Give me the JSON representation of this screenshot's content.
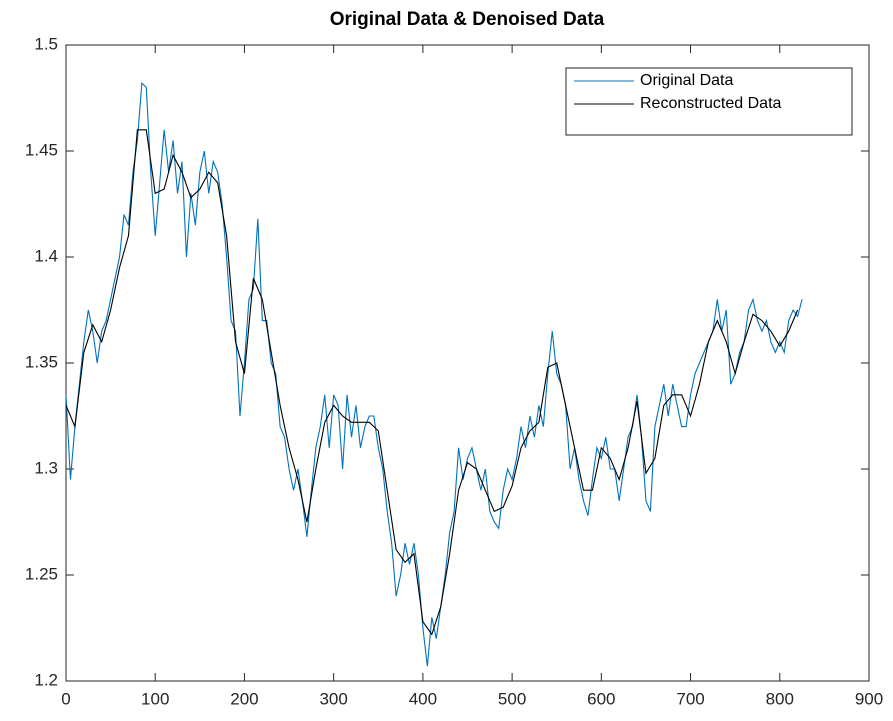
{
  "chart_data": {
    "type": "line",
    "title": "Original Data & Denoised Data",
    "xlim": [
      0,
      900
    ],
    "xticks": [
      0,
      100,
      200,
      300,
      400,
      500,
      600,
      700,
      800,
      900
    ],
    "ylim": [
      1.2,
      1.5
    ],
    "yticks": [
      1.2,
      1.25,
      1.3,
      1.35,
      1.4,
      1.45,
      1.5
    ],
    "legend": "northeast",
    "grid": false,
    "series": [
      {
        "name": "Original Data",
        "color": "#0072BD",
        "x": [
          0,
          5,
          10,
          15,
          20,
          25,
          30,
          35,
          40,
          45,
          50,
          55,
          60,
          65,
          70,
          75,
          80,
          85,
          90,
          95,
          100,
          105,
          110,
          115,
          120,
          125,
          130,
          135,
          140,
          145,
          150,
          155,
          160,
          165,
          170,
          175,
          180,
          185,
          190,
          195,
          200,
          205,
          210,
          215,
          220,
          225,
          230,
          235,
          240,
          245,
          250,
          255,
          260,
          265,
          270,
          275,
          280,
          285,
          290,
          295,
          300,
          305,
          310,
          315,
          320,
          325,
          330,
          335,
          340,
          345,
          350,
          355,
          360,
          365,
          370,
          375,
          380,
          385,
          390,
          395,
          400,
          405,
          410,
          415,
          420,
          425,
          430,
          435,
          440,
          445,
          450,
          455,
          460,
          465,
          470,
          475,
          480,
          485,
          490,
          495,
          500,
          505,
          510,
          515,
          520,
          525,
          530,
          535,
          540,
          545,
          550,
          555,
          560,
          565,
          570,
          575,
          580,
          585,
          590,
          595,
          600,
          605,
          610,
          615,
          620,
          625,
          630,
          635,
          640,
          645,
          650,
          655,
          660,
          665,
          670,
          675,
          680,
          685,
          690,
          695,
          700,
          705,
          710,
          715,
          720,
          725,
          730,
          735,
          740,
          745,
          750,
          755,
          760,
          765,
          770,
          775,
          780,
          785,
          790,
          795,
          800,
          805,
          810,
          815,
          820,
          825
        ],
        "values": [
          1.335,
          1.295,
          1.32,
          1.34,
          1.36,
          1.375,
          1.365,
          1.35,
          1.365,
          1.37,
          1.38,
          1.39,
          1.4,
          1.42,
          1.415,
          1.44,
          1.455,
          1.482,
          1.48,
          1.44,
          1.41,
          1.435,
          1.46,
          1.44,
          1.455,
          1.43,
          1.445,
          1.4,
          1.43,
          1.415,
          1.44,
          1.45,
          1.43,
          1.445,
          1.44,
          1.425,
          1.4,
          1.37,
          1.365,
          1.325,
          1.35,
          1.38,
          1.385,
          1.418,
          1.37,
          1.37,
          1.35,
          1.345,
          1.32,
          1.315,
          1.3,
          1.29,
          1.3,
          1.285,
          1.268,
          1.29,
          1.31,
          1.32,
          1.335,
          1.31,
          1.335,
          1.33,
          1.3,
          1.335,
          1.315,
          1.33,
          1.31,
          1.32,
          1.325,
          1.325,
          1.31,
          1.3,
          1.28,
          1.265,
          1.24,
          1.25,
          1.265,
          1.255,
          1.265,
          1.25,
          1.225,
          1.207,
          1.23,
          1.22,
          1.235,
          1.25,
          1.27,
          1.28,
          1.31,
          1.295,
          1.305,
          1.31,
          1.3,
          1.29,
          1.3,
          1.28,
          1.275,
          1.272,
          1.29,
          1.3,
          1.295,
          1.305,
          1.32,
          1.31,
          1.325,
          1.315,
          1.33,
          1.32,
          1.345,
          1.365,
          1.345,
          1.34,
          1.33,
          1.3,
          1.31,
          1.295,
          1.285,
          1.278,
          1.295,
          1.31,
          1.305,
          1.315,
          1.3,
          1.3,
          1.285,
          1.3,
          1.315,
          1.32,
          1.335,
          1.315,
          1.285,
          1.28,
          1.32,
          1.33,
          1.34,
          1.325,
          1.34,
          1.33,
          1.32,
          1.32,
          1.335,
          1.345,
          1.35,
          1.355,
          1.36,
          1.365,
          1.38,
          1.365,
          1.375,
          1.34,
          1.345,
          1.355,
          1.36,
          1.375,
          1.38,
          1.37,
          1.365,
          1.37,
          1.36,
          1.355,
          1.36,
          1.355,
          1.37,
          1.375,
          1.372,
          1.38
        ]
      },
      {
        "name": "Reconstructed Data",
        "color": "#000000",
        "x": [
          0,
          10,
          20,
          30,
          40,
          50,
          60,
          70,
          80,
          90,
          100,
          110,
          120,
          130,
          140,
          150,
          160,
          170,
          180,
          190,
          200,
          210,
          220,
          230,
          240,
          250,
          260,
          270,
          280,
          290,
          300,
          310,
          320,
          330,
          340,
          350,
          360,
          370,
          380,
          390,
          400,
          410,
          420,
          430,
          440,
          450,
          460,
          470,
          480,
          490,
          500,
          510,
          520,
          530,
          540,
          550,
          560,
          570,
          580,
          590,
          600,
          610,
          620,
          630,
          640,
          650,
          660,
          670,
          680,
          690,
          700,
          710,
          720,
          730,
          740,
          750,
          760,
          770,
          780,
          790,
          800,
          810,
          820
        ],
        "values": [
          1.33,
          1.32,
          1.355,
          1.368,
          1.36,
          1.375,
          1.395,
          1.41,
          1.46,
          1.46,
          1.43,
          1.432,
          1.448,
          1.44,
          1.428,
          1.432,
          1.44,
          1.435,
          1.41,
          1.36,
          1.345,
          1.39,
          1.38,
          1.355,
          1.33,
          1.31,
          1.295,
          1.275,
          1.3,
          1.322,
          1.33,
          1.325,
          1.322,
          1.322,
          1.322,
          1.318,
          1.29,
          1.262,
          1.256,
          1.26,
          1.228,
          1.222,
          1.235,
          1.26,
          1.29,
          1.303,
          1.3,
          1.29,
          1.28,
          1.282,
          1.292,
          1.31,
          1.318,
          1.322,
          1.348,
          1.35,
          1.33,
          1.31,
          1.29,
          1.29,
          1.31,
          1.305,
          1.295,
          1.31,
          1.332,
          1.298,
          1.305,
          1.33,
          1.335,
          1.335,
          1.325,
          1.34,
          1.36,
          1.37,
          1.36,
          1.345,
          1.36,
          1.373,
          1.37,
          1.365,
          1.358,
          1.365,
          1.375
        ]
      }
    ]
  }
}
